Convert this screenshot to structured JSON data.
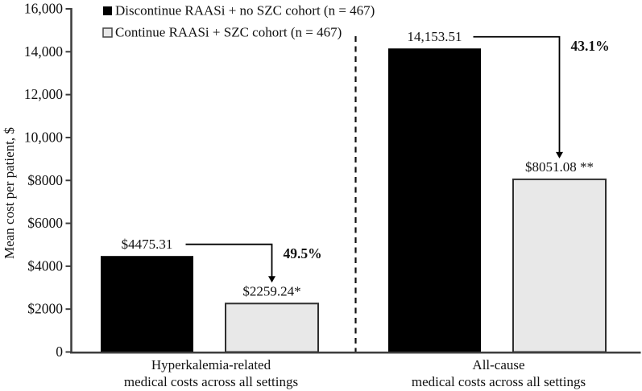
{
  "chart_data": {
    "type": "bar",
    "title": "",
    "xlabel": "",
    "ylabel": "Mean cost per patient, $",
    "ylim": [
      0,
      16000
    ],
    "grid": false,
    "legend_position": "top-left inside plot area",
    "y_ticks": [
      {
        "value": 16000,
        "label": "16,000"
      },
      {
        "value": 14000,
        "label": "14,000"
      },
      {
        "value": 12000,
        "label": "12,000"
      },
      {
        "value": 10000,
        "label": "10,000"
      },
      {
        "value": 8000,
        "label": "$8000"
      },
      {
        "value": 6000,
        "label": "$6000"
      },
      {
        "value": 4000,
        "label": "$4000"
      },
      {
        "value": 2000,
        "label": "$2000"
      },
      {
        "value": 0,
        "label": "0"
      }
    ],
    "categories": [
      {
        "key": "hyperkalemia",
        "line1": "Hyperkalemia-related",
        "line2": "medical costs across all settings"
      },
      {
        "key": "all-cause",
        "line1": "All-cause",
        "line2": "medical costs across all settings"
      }
    ],
    "series": [
      {
        "key": "discontinue",
        "name": "Discontinue RAASi + no SZC cohort (n = 467)",
        "swatch": "black-filled-square",
        "fill": "#000000",
        "stroke": "#000000",
        "values": [
          4475.31,
          14153.51
        ],
        "value_labels": [
          "$4475.31",
          "14,153.51"
        ]
      },
      {
        "key": "continue",
        "name": "Continue RAASi + SZC cohort (n = 467)",
        "swatch": "light-gray-outlined-square",
        "fill": "#e8e8e8",
        "stroke": "#2f2f2f",
        "values": [
          2259.24,
          8051.08
        ],
        "value_labels": [
          "$2259.24*",
          "$8051.08 **"
        ]
      }
    ],
    "reduction_annotations": [
      {
        "group_index": 0,
        "label": "49.5%"
      },
      {
        "group_index": 1,
        "label": "43.1%"
      }
    ],
    "divider": {
      "style": "dashed-vertical-line",
      "position": "between category groups"
    }
  },
  "colors": {
    "background": "#ffffff",
    "axis": "#3d3d3d",
    "bar_black": "#000000",
    "bar_gray_fill": "#e8e8e8",
    "bar_gray_stroke": "#2f2f2f",
    "arrow": "#000000",
    "text": "#111111"
  }
}
